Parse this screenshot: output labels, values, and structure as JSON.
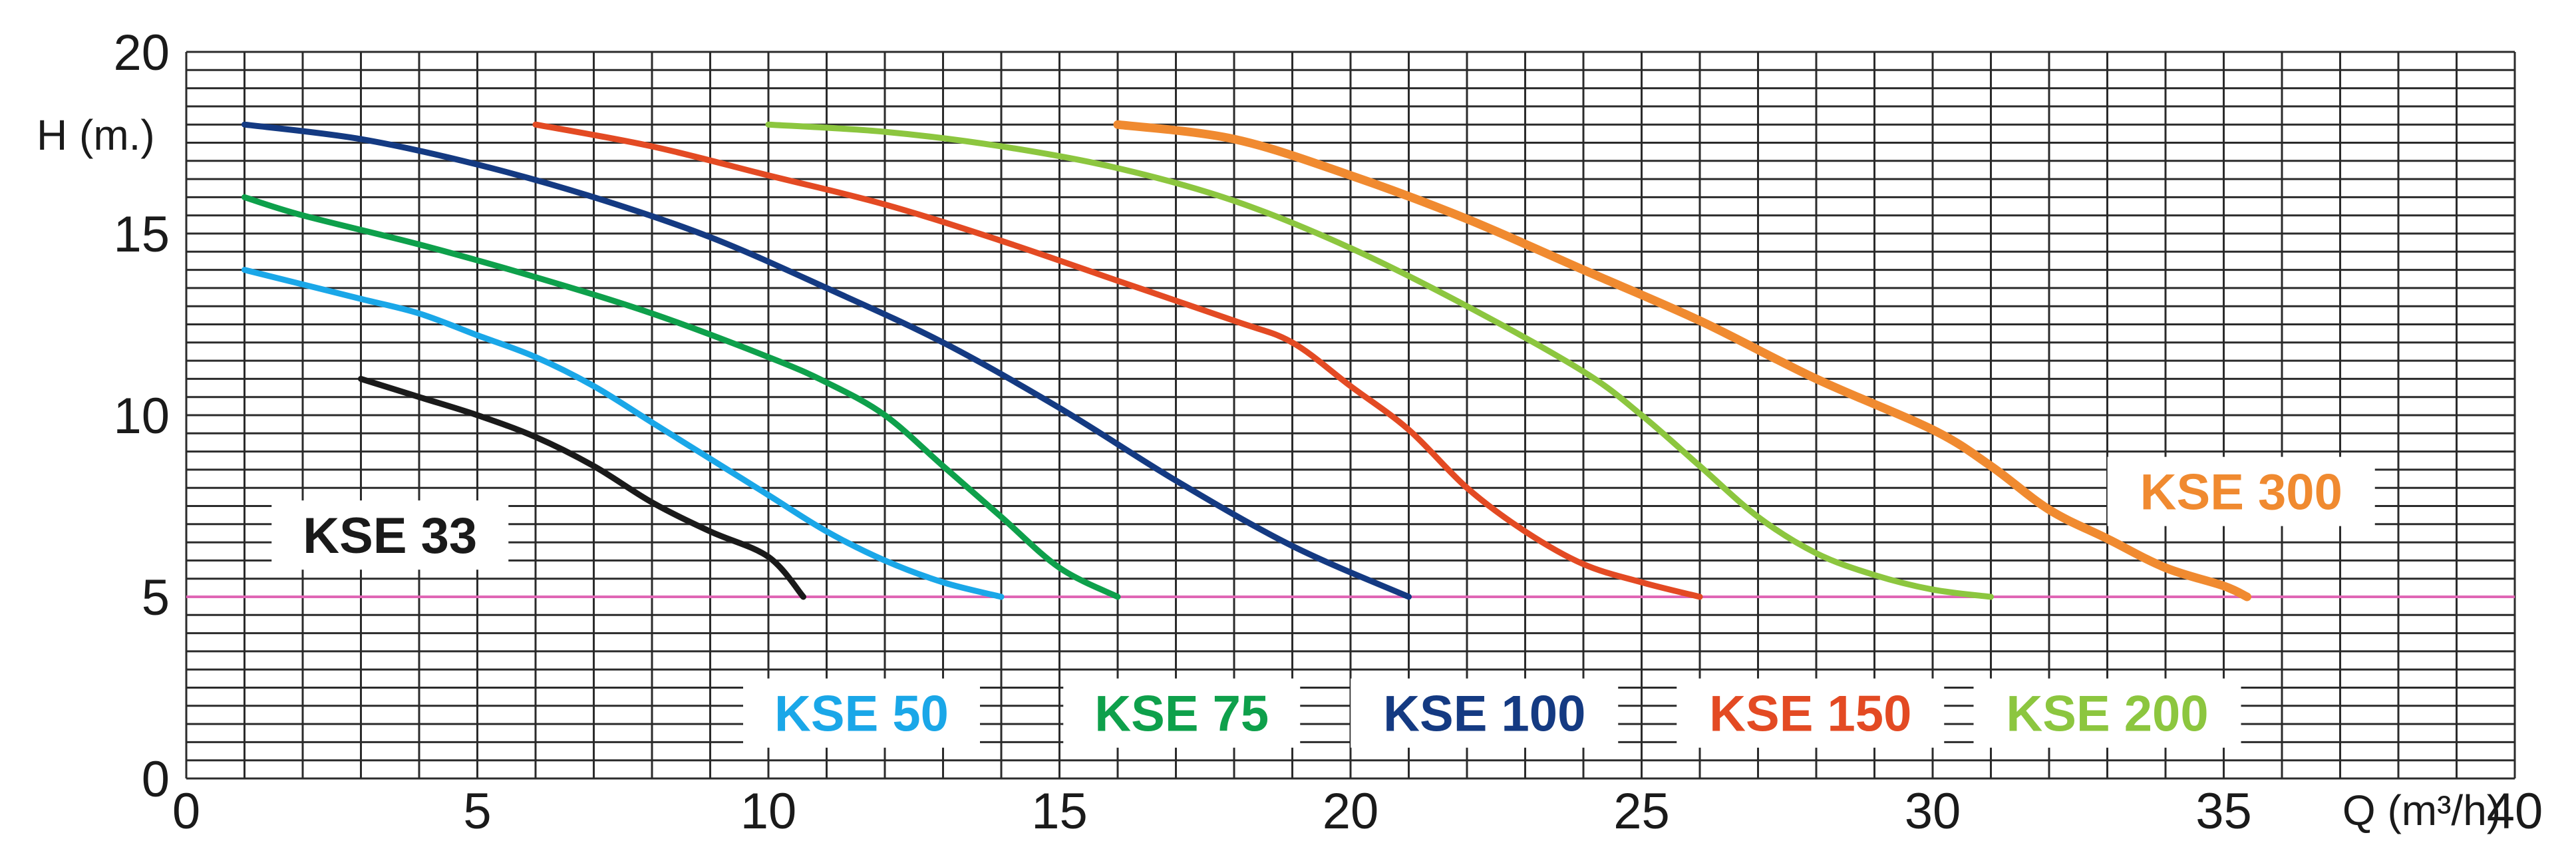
{
  "chart_data": {
    "type": "line",
    "title": "",
    "xlabel": "Q (m³/h)",
    "ylabel": "H (m.)",
    "xlim": [
      0,
      40
    ],
    "ylim": [
      0,
      20
    ],
    "x_ticks": [
      "0",
      "5",
      "10",
      "15",
      "20",
      "25",
      "30",
      "35",
      "40"
    ],
    "y_ticks": [
      "0",
      "5",
      "10",
      "15",
      "20"
    ],
    "grid": true,
    "reference_line": {
      "y": 5,
      "color": "#e066b5"
    },
    "series": [
      {
        "name": "KSE 33",
        "color": "#1a1a1a",
        "points": [
          [
            3,
            11
          ],
          [
            4,
            10.5
          ],
          [
            5,
            10
          ],
          [
            6,
            9.4
          ],
          [
            7,
            8.6
          ],
          [
            8,
            7.6
          ],
          [
            9,
            6.8
          ],
          [
            10,
            6.1
          ],
          [
            10.6,
            5
          ]
        ]
      },
      {
        "name": "KSE 50",
        "color": "#1aa7e8",
        "points": [
          [
            1,
            14
          ],
          [
            2,
            13.6
          ],
          [
            3,
            13.2
          ],
          [
            4,
            12.8
          ],
          [
            5,
            12.2
          ],
          [
            6,
            11.6
          ],
          [
            7,
            10.8
          ],
          [
            8,
            9.8
          ],
          [
            9,
            8.8
          ],
          [
            10,
            7.8
          ],
          [
            11,
            6.8
          ],
          [
            12,
            6
          ],
          [
            13,
            5.4
          ],
          [
            14,
            5
          ]
        ]
      },
      {
        "name": "KSE 75",
        "color": "#0ea04b",
        "points": [
          [
            1,
            16
          ],
          [
            2,
            15.5
          ],
          [
            4,
            14.7
          ],
          [
            6,
            13.8
          ],
          [
            8,
            12.8
          ],
          [
            10,
            11.6
          ],
          [
            11,
            10.9
          ],
          [
            12,
            10
          ],
          [
            13,
            8.6
          ],
          [
            14,
            7.2
          ],
          [
            15,
            5.8
          ],
          [
            16,
            5
          ]
        ]
      },
      {
        "name": "KSE 100",
        "color": "#143a82",
        "points": [
          [
            1,
            18
          ],
          [
            3,
            17.6
          ],
          [
            5,
            16.9
          ],
          [
            7,
            16
          ],
          [
            9,
            14.9
          ],
          [
            11,
            13.5
          ],
          [
            13,
            12
          ],
          [
            15,
            10.2
          ],
          [
            17,
            8.2
          ],
          [
            19,
            6.4
          ],
          [
            21,
            5
          ]
        ]
      },
      {
        "name": "KSE 150",
        "color": "#e34a23",
        "points": [
          [
            6,
            18
          ],
          [
            8,
            17.4
          ],
          [
            10,
            16.6
          ],
          [
            12,
            15.8
          ],
          [
            14,
            14.8
          ],
          [
            16,
            13.7
          ],
          [
            18,
            12.6
          ],
          [
            19,
            12
          ],
          [
            20,
            10.8
          ],
          [
            21,
            9.6
          ],
          [
            22,
            8
          ],
          [
            23,
            6.8
          ],
          [
            24,
            5.9
          ],
          [
            25,
            5.4
          ],
          [
            26,
            5
          ]
        ]
      },
      {
        "name": "KSE 200",
        "color": "#8cc63f",
        "points": [
          [
            10,
            18
          ],
          [
            12,
            17.8
          ],
          [
            14,
            17.4
          ],
          [
            16,
            16.8
          ],
          [
            18,
            15.9
          ],
          [
            20,
            14.6
          ],
          [
            22,
            13
          ],
          [
            24,
            11.2
          ],
          [
            25,
            10
          ],
          [
            26,
            8.6
          ],
          [
            27,
            7.2
          ],
          [
            28,
            6.2
          ],
          [
            29,
            5.6
          ],
          [
            30,
            5.2
          ],
          [
            31,
            5
          ]
        ]
      },
      {
        "name": "KSE 300",
        "color": "#f08a30",
        "points": [
          [
            16,
            18
          ],
          [
            18,
            17.6
          ],
          [
            20,
            16.6
          ],
          [
            22,
            15.4
          ],
          [
            24,
            14
          ],
          [
            26,
            12.6
          ],
          [
            28,
            11
          ],
          [
            30,
            9.6
          ],
          [
            31,
            8.6
          ],
          [
            32,
            7.4
          ],
          [
            33,
            6.6
          ],
          [
            34,
            5.8
          ],
          [
            35,
            5.3
          ],
          [
            35.4,
            5
          ]
        ]
      }
    ],
    "labels": [
      {
        "series": "KSE 33",
        "text": "KSE 33",
        "x": 3.5,
        "y": 6.7
      },
      {
        "series": "KSE 50",
        "text": "KSE 50",
        "x": 11.6,
        "y": 1.8
      },
      {
        "series": "KSE 75",
        "text": "KSE 75",
        "x": 17.1,
        "y": 1.8
      },
      {
        "series": "KSE 100",
        "text": "KSE 100",
        "x": 22.3,
        "y": 1.8
      },
      {
        "series": "KSE 150",
        "text": "KSE 150",
        "x": 27.9,
        "y": 1.8
      },
      {
        "series": "KSE 200",
        "text": "KSE 200",
        "x": 33,
        "y": 1.8
      },
      {
        "series": "KSE 300",
        "text": "KSE 300",
        "x": 35.3,
        "y": 7.9
      }
    ]
  }
}
